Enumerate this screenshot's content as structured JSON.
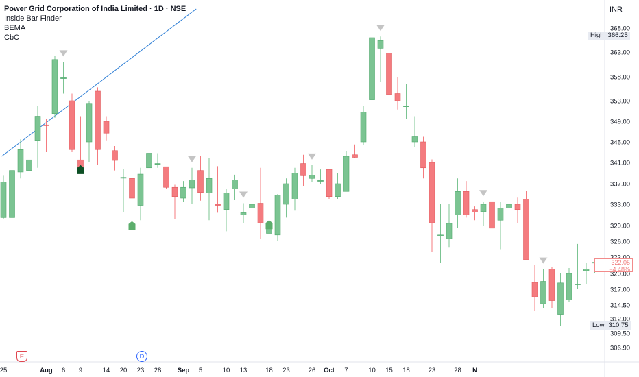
{
  "legend": {
    "title": "Power Grid Corporation of India Limited · 1D · NSE",
    "indicators": [
      "Inside Bar Finder",
      "BEMA",
      "CbC"
    ]
  },
  "currency": "INR",
  "high_tag": {
    "label": "High",
    "value": "366.25"
  },
  "low_tag": {
    "label": "Low",
    "value": "310.75"
  },
  "last_price": {
    "value": "322.05",
    "change": "−4.48%"
  },
  "events": {
    "earnings": "E",
    "dividend": "D"
  },
  "colors": {
    "up": "#7bc492",
    "up_border": "#4fa86c",
    "down": "#f47b7f",
    "down_border": "#e05a5e",
    "trendline": "#2f7fd6",
    "marker": "#c4c4c4",
    "arrow_up": "#5cae6c",
    "arrow_dark": "#0d4f24"
  },
  "chart_data": {
    "type": "candlestick",
    "y_ticks": [
      "368.00",
      "363.00",
      "358.00",
      "353.00",
      "349.00",
      "345.00",
      "341.00",
      "337.00",
      "333.00",
      "329.00",
      "326.00",
      "323.00",
      "320.00",
      "317.00",
      "314.50",
      "312.00",
      "309.50",
      "306.90"
    ],
    "x_ticks": [
      {
        "label": "25",
        "i": 0
      },
      {
        "label": "Aug",
        "i": 5,
        "bold": true
      },
      {
        "label": "6",
        "i": 7
      },
      {
        "label": "9",
        "i": 9
      },
      {
        "label": "14",
        "i": 12
      },
      {
        "label": "20",
        "i": 14
      },
      {
        "label": "23",
        "i": 16
      },
      {
        "label": "28",
        "i": 18
      },
      {
        "label": "Sep",
        "i": 21,
        "bold": true
      },
      {
        "label": "5",
        "i": 23
      },
      {
        "label": "10",
        "i": 26
      },
      {
        "label": "13",
        "i": 28
      },
      {
        "label": "18",
        "i": 31
      },
      {
        "label": "23",
        "i": 33
      },
      {
        "label": "26",
        "i": 36
      },
      {
        "label": "Oct",
        "i": 38,
        "bold": true
      },
      {
        "label": "7",
        "i": 40
      },
      {
        "label": "10",
        "i": 43
      },
      {
        "label": "15",
        "i": 45
      },
      {
        "label": "18",
        "i": 47
      },
      {
        "label": "23",
        "i": 50
      },
      {
        "label": "28",
        "i": 53
      },
      {
        "label": "N",
        "i": 55,
        "bold": true
      }
    ],
    "candles": [
      {
        "o": 330.5,
        "h": 338.5,
        "l": 330.2,
        "c": 337.3
      },
      {
        "o": 330.5,
        "h": 341.0,
        "l": 330.3,
        "c": 339.5
      },
      {
        "o": 339.2,
        "h": 345.5,
        "l": 338.0,
        "c": 343.5
      },
      {
        "o": 339.5,
        "h": 345.2,
        "l": 337.5,
        "c": 341.5
      },
      {
        "o": 345.3,
        "h": 352.0,
        "l": 340.0,
        "c": 350.0
      },
      {
        "o": 348.3,
        "h": 349.5,
        "l": 343.0,
        "c": 348.2
      },
      {
        "o": 350.5,
        "h": 362.3,
        "l": 349.7,
        "c": 361.5
      },
      {
        "o": 357.8,
        "h": 361.0,
        "l": 354.5,
        "c": 357.8
      },
      {
        "o": 353.0,
        "h": 354.5,
        "l": 343.0,
        "c": 343.5
      },
      {
        "o": 341.5,
        "h": 350.0,
        "l": 340.3,
        "c": 340.0
      },
      {
        "o": 345.0,
        "h": 353.0,
        "l": 341.0,
        "c": 352.5
      },
      {
        "o": 355.0,
        "h": 355.8,
        "l": 340.5,
        "c": 343.5
      },
      {
        "o": 349.0,
        "h": 350.0,
        "l": 345.3,
        "c": 346.7
      },
      {
        "o": 343.3,
        "h": 344.2,
        "l": 339.5,
        "c": 341.4
      },
      {
        "o": 338.2,
        "h": 339.8,
        "l": 331.5,
        "c": 338.2
      },
      {
        "o": 338.0,
        "h": 341.5,
        "l": 331.8,
        "c": 334.2
      },
      {
        "o": 332.8,
        "h": 340.0,
        "l": 330.0,
        "c": 338.8
      },
      {
        "o": 340.0,
        "h": 344.0,
        "l": 336.0,
        "c": 342.8
      },
      {
        "o": 340.8,
        "h": 342.8,
        "l": 340.0,
        "c": 340.8
      },
      {
        "o": 340.2,
        "h": 340.2,
        "l": 336.0,
        "c": 336.3
      },
      {
        "o": 336.3,
        "h": 336.8,
        "l": 330.2,
        "c": 334.5
      },
      {
        "o": 334.2,
        "h": 337.5,
        "l": 333.5,
        "c": 336.3
      },
      {
        "o": 336.2,
        "h": 340.0,
        "l": 333.0,
        "c": 337.7
      },
      {
        "o": 339.5,
        "h": 342.2,
        "l": 333.7,
        "c": 335.3
      },
      {
        "o": 335.2,
        "h": 341.8,
        "l": 330.0,
        "c": 338.0
      },
      {
        "o": 333.0,
        "h": 340.3,
        "l": 331.4,
        "c": 332.8
      },
      {
        "o": 332.0,
        "h": 336.0,
        "l": 327.9,
        "c": 335.2
      },
      {
        "o": 336.0,
        "h": 338.7,
        "l": 333.8,
        "c": 337.7
      },
      {
        "o": 331.0,
        "h": 333.2,
        "l": 329.5,
        "c": 331.4
      },
      {
        "o": 332.3,
        "h": 333.8,
        "l": 331.0,
        "c": 333.0
      },
      {
        "o": 333.2,
        "h": 340.0,
        "l": 326.5,
        "c": 329.5
      },
      {
        "o": 327.5,
        "h": 330.0,
        "l": 324.0,
        "c": 328.4
      },
      {
        "o": 327.2,
        "h": 335.0,
        "l": 326.0,
        "c": 334.8
      },
      {
        "o": 333.0,
        "h": 338.0,
        "l": 330.5,
        "c": 337.0
      },
      {
        "o": 334.0,
        "h": 340.0,
        "l": 331.8,
        "c": 339.0
      },
      {
        "o": 340.8,
        "h": 342.5,
        "l": 336.5,
        "c": 338.5
      },
      {
        "o": 338.0,
        "h": 340.5,
        "l": 337.3,
        "c": 338.6
      },
      {
        "o": 337.6,
        "h": 339.7,
        "l": 337.0,
        "c": 337.6
      },
      {
        "o": 339.7,
        "h": 339.7,
        "l": 334.0,
        "c": 334.5
      },
      {
        "o": 334.5,
        "h": 339.0,
        "l": 334.0,
        "c": 337.0
      },
      {
        "o": 335.5,
        "h": 343.2,
        "l": 335.5,
        "c": 342.2
      },
      {
        "o": 342.5,
        "h": 344.5,
        "l": 341.8,
        "c": 342.0
      },
      {
        "o": 345.0,
        "h": 352.0,
        "l": 344.4,
        "c": 350.8
      },
      {
        "o": 353.2,
        "h": 366.0,
        "l": 352.5,
        "c": 366.0
      },
      {
        "o": 363.8,
        "h": 366.25,
        "l": 357.0,
        "c": 365.4
      },
      {
        "o": 362.8,
        "h": 363.5,
        "l": 354.2,
        "c": 354.3
      },
      {
        "o": 354.5,
        "h": 358.0,
        "l": 351.3,
        "c": 353.0
      },
      {
        "o": 352.0,
        "h": 356.5,
        "l": 349.5,
        "c": 352.0
      },
      {
        "o": 345.0,
        "h": 350.0,
        "l": 344.0,
        "c": 346.0
      },
      {
        "o": 345.0,
        "h": 346.0,
        "l": 338.0,
        "c": 340.0
      },
      {
        "o": 341.0,
        "h": 341.6,
        "l": 324.0,
        "c": 329.5
      },
      {
        "o": 327.2,
        "h": 333.0,
        "l": 322.0,
        "c": 327.2
      },
      {
        "o": 326.5,
        "h": 333.0,
        "l": 324.8,
        "c": 329.4
      },
      {
        "o": 331.0,
        "h": 338.0,
        "l": 328.5,
        "c": 335.5
      },
      {
        "o": 335.5,
        "h": 337.5,
        "l": 330.5,
        "c": 331.0
      },
      {
        "o": 332.0,
        "h": 332.6,
        "l": 330.0,
        "c": 331.5
      },
      {
        "o": 331.6,
        "h": 333.5,
        "l": 329.0,
        "c": 333.0
      },
      {
        "o": 333.5,
        "h": 333.5,
        "l": 326.5,
        "c": 328.5
      },
      {
        "o": 330.0,
        "h": 333.5,
        "l": 324.5,
        "c": 332.3
      },
      {
        "o": 332.3,
        "h": 334.0,
        "l": 331.0,
        "c": 333.0
      },
      {
        "o": 333.0,
        "h": 334.3,
        "l": 329.5,
        "c": 332.0
      },
      {
        "o": 334.0,
        "h": 335.6,
        "l": 322.5,
        "c": 322.5
      },
      {
        "o": 318.3,
        "h": 321.5,
        "l": 313.5,
        "c": 315.8
      },
      {
        "o": 314.7,
        "h": 320.8,
        "l": 314.0,
        "c": 318.5
      },
      {
        "o": 320.8,
        "h": 321.2,
        "l": 314.0,
        "c": 315.2
      },
      {
        "o": 312.8,
        "h": 320.0,
        "l": 310.75,
        "c": 318.2
      },
      {
        "o": 315.3,
        "h": 321.0,
        "l": 315.0,
        "c": 320.0
      },
      {
        "o": 318.0,
        "h": 325.5,
        "l": 317.0,
        "c": 318.0
      },
      {
        "o": 320.5,
        "h": 322.0,
        "l": 318.0,
        "c": 320.8
      },
      {
        "o": 322.05,
        "h": 322.5,
        "l": 320.0,
        "c": 322.05
      }
    ],
    "inside_bar_markers": [
      7,
      22,
      28,
      36,
      44,
      56,
      63
    ],
    "arrows": [
      {
        "i": 9,
        "price": 340.5,
        "style": "dark"
      },
      {
        "i": 15,
        "price": 329.8,
        "style": "green"
      },
      {
        "i": 31,
        "price": 330.0,
        "style": "green"
      }
    ],
    "trendline": [
      {
        "i": -0.2,
        "price": 342.2
      },
      {
        "i": 22.5,
        "price": 372.0
      }
    ]
  }
}
